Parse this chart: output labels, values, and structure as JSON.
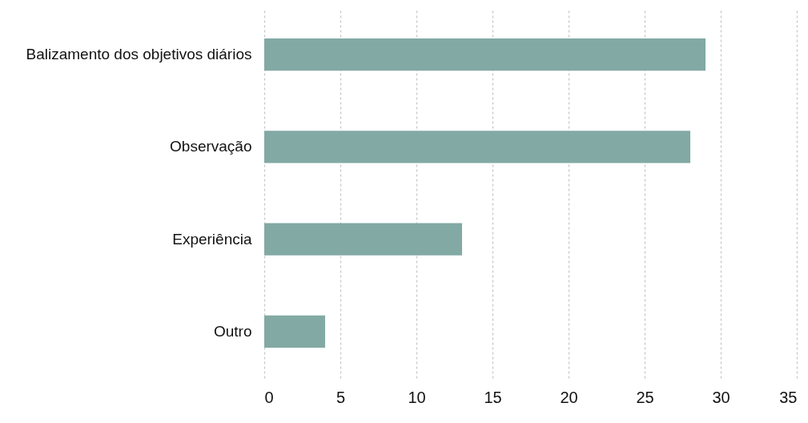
{
  "chart_data": {
    "type": "bar",
    "orientation": "horizontal",
    "categories": [
      "Balizamento dos objetivos diários",
      "Observação",
      "Experiência",
      "Outro"
    ],
    "values": [
      29,
      28,
      13,
      4
    ],
    "color": "#82a9a4",
    "xlim": [
      0,
      35
    ],
    "xticks": [
      0,
      5,
      10,
      15,
      20,
      25,
      30,
      35
    ],
    "grid": "x"
  }
}
